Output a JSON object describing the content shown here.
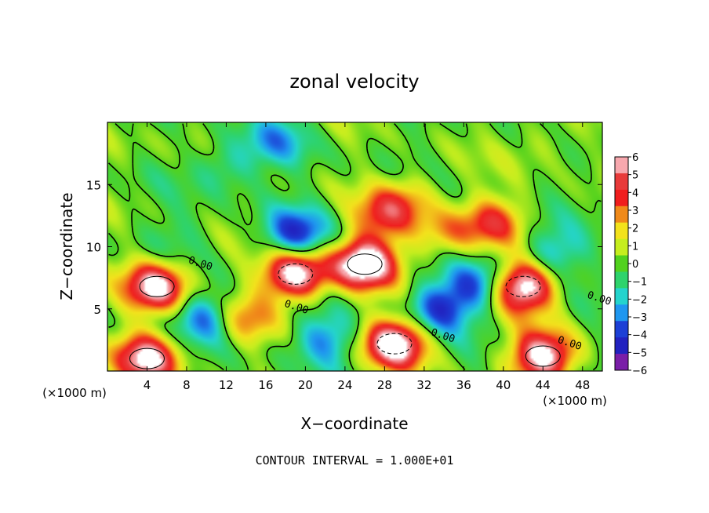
{
  "chart_data": {
    "type": "heatmap",
    "title": "zonal velocity",
    "xlabel": "X−coordinate",
    "ylabel": "Z−coordinate",
    "x_unit_left": "(×1000 m)",
    "x_unit_right": "(×1000 m)",
    "footer": "CONTOUR INTERVAL = 1.000E+01",
    "xlim": [
      0,
      50
    ],
    "ylim": [
      0,
      20
    ],
    "x_ticks": [
      4,
      8,
      12,
      16,
      20,
      24,
      28,
      32,
      36,
      40,
      44,
      48
    ],
    "x_tick_labels": [
      "4",
      "8",
      "12",
      "16",
      "20",
      "24",
      "28",
      "32",
      "36",
      "40",
      "44",
      "48"
    ],
    "y_ticks": [
      5,
      10,
      15
    ],
    "y_tick_labels": [
      "5",
      "10",
      "15"
    ],
    "colorbar": {
      "min": -6,
      "max": 6,
      "labels": [
        "6",
        "5",
        "4",
        "3",
        "2",
        "1",
        "0",
        "−1",
        "−2",
        "−3",
        "−4",
        "−5",
        "−6"
      ],
      "colors": [
        "#f7a8ae",
        "#e83a3a",
        "#f01e1e",
        "#f08a1a",
        "#f3e21c",
        "#c6ee1e",
        "#52d21e",
        "#2ed36c",
        "#24d4cd",
        "#1f97f0",
        "#1c40d6",
        "#2222c0",
        "#7a1ea8"
      ]
    },
    "contour_labels": [
      {
        "text": "0.00",
        "x": 9.3,
        "z": 8.4
      },
      {
        "text": "0.00",
        "x": 19.0,
        "z": 4.9
      },
      {
        "text": "0.00",
        "x": 33.8,
        "z": 2.6
      },
      {
        "text": "0.00",
        "x": 46.6,
        "z": 2.0
      },
      {
        "text": "0.00",
        "x": 49.6,
        "z": 5.6
      }
    ],
    "features": [
      {
        "x": 5.0,
        "z": 6.8,
        "v": 7.0
      },
      {
        "x": 19.0,
        "z": 7.8,
        "v": 7.5
      },
      {
        "x": 26.0,
        "z": 8.6,
        "v": 8.0
      },
      {
        "x": 42.0,
        "z": 6.8,
        "v": 7.5
      },
      {
        "x": 44.0,
        "z": 1.2,
        "v": 7.0
      },
      {
        "x": 29.0,
        "z": 2.2,
        "v": 7.5
      },
      {
        "x": 4.0,
        "z": 1.0,
        "v": 6.5
      },
      {
        "x": 13.5,
        "z": 4.2,
        "v": 3.5
      },
      {
        "x": 28.0,
        "z": 12.5,
        "v": 3.6
      },
      {
        "x": 39.0,
        "z": 12.0,
        "v": 3.8
      },
      {
        "x": 34.0,
        "z": 11.0,
        "v": 2.6
      },
      {
        "x": 30.5,
        "z": 14.0,
        "v": 2.2
      },
      {
        "x": 12.0,
        "z": 16.5,
        "v": -2.0
      },
      {
        "x": 17.0,
        "z": 18.5,
        "v": -2.4
      },
      {
        "x": 19.0,
        "z": 11.0,
        "v": -4.5
      },
      {
        "x": 10.2,
        "z": 4.3,
        "v": -4.0
      },
      {
        "x": 33.5,
        "z": 5.0,
        "v": -4.2
      },
      {
        "x": 37.5,
        "z": 7.0,
        "v": -3.8
      },
      {
        "x": 22.0,
        "z": 2.5,
        "v": -3.0
      },
      {
        "x": 44.0,
        "z": 18.5,
        "v": 1.2
      },
      {
        "x": 2.0,
        "z": 17.5,
        "v": 0.5
      },
      {
        "x": 45.0,
        "z": 9.5,
        "v": -2.5
      },
      {
        "x": 7.5,
        "z": 11.0,
        "v": -0.8
      }
    ]
  }
}
